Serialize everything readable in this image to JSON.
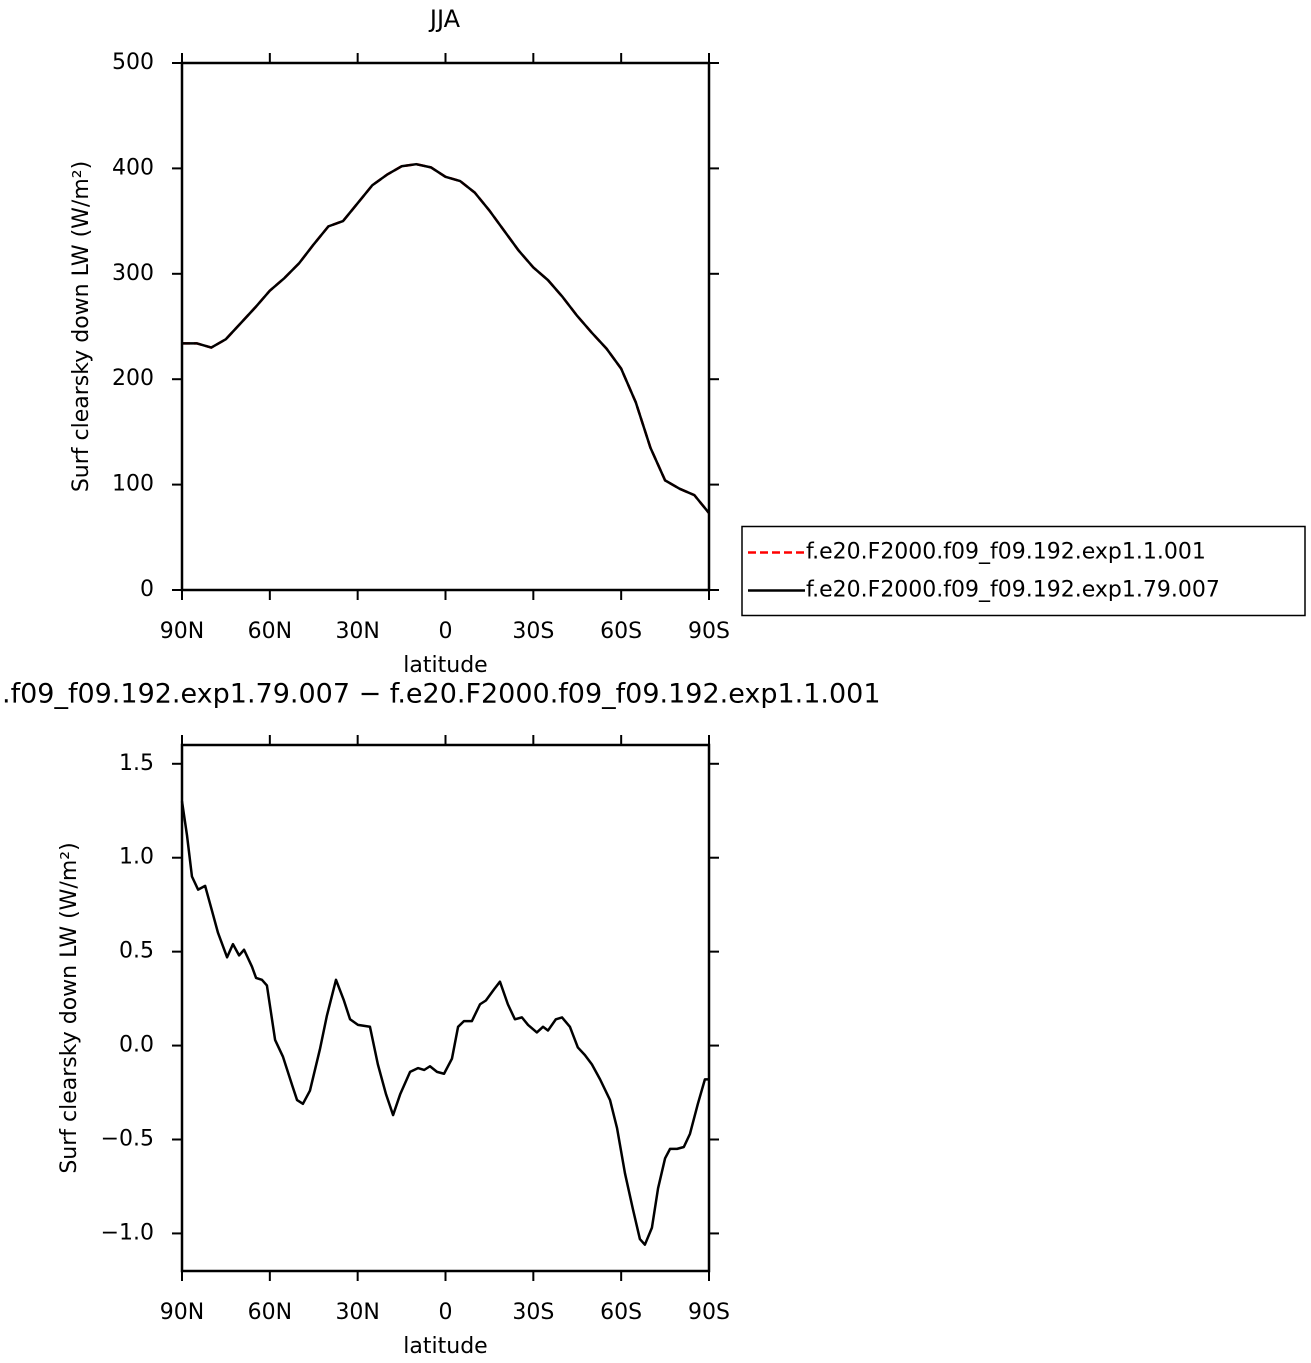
{
  "chart_data": [
    {
      "type": "line",
      "title": "JJA",
      "xlabel": "latitude",
      "ylabel": "Surf clearsky down LW (W/m²)",
      "x": [
        90,
        85,
        80,
        75,
        70,
        65,
        60,
        55,
        50,
        45,
        40,
        35,
        30,
        25,
        20,
        15,
        10,
        5,
        0,
        -5,
        -10,
        -15,
        -20,
        -25,
        -30,
        -35,
        -40,
        -45,
        -50,
        -55,
        -60,
        -65,
        -70,
        -75,
        -80,
        -85,
        -90
      ],
      "series": [
        {
          "name": "f.e20.F2000.f09_f09.192.exp1.1.001",
          "color": "#ff0000",
          "dash": true,
          "values": [
            234,
            234,
            230,
            238,
            253,
            268,
            284,
            296,
            310,
            328,
            345,
            350,
            367,
            384,
            394,
            402,
            404,
            401,
            392,
            388,
            377,
            360,
            341,
            322,
            306,
            294,
            278,
            260,
            244,
            229,
            210,
            178,
            135,
            104,
            96,
            90,
            73
          ]
        },
        {
          "name": "f.e20.F2000.f09_f09.192.exp1.79.007",
          "color": "#000000",
          "dash": false,
          "values": [
            234,
            234,
            230,
            238,
            253,
            268,
            284,
            296,
            310,
            328,
            345,
            350,
            367,
            384,
            394,
            402,
            404,
            401,
            392,
            388,
            377,
            360,
            341,
            322,
            306,
            294,
            278,
            260,
            244,
            229,
            210,
            178,
            135,
            104,
            96,
            90,
            73
          ]
        }
      ],
      "xlim": [
        90,
        -90
      ],
      "xticks": [
        {
          "value": 90,
          "label": "90N"
        },
        {
          "value": 60,
          "label": "60N"
        },
        {
          "value": 30,
          "label": "30N"
        },
        0,
        {
          "value": -30,
          "label": "30S"
        },
        {
          "value": -60,
          "label": "60S"
        },
        {
          "value": -90,
          "label": "90S"
        }
      ],
      "ylim": [
        0,
        500
      ],
      "yticks": [
        0,
        100,
        200,
        300,
        400,
        500
      ],
      "legend": "right"
    },
    {
      "type": "line",
      "title": ".f09_f09.192.exp1.79.007 − f.e20.F2000.f09_f09.192.exp1.1.001",
      "xlabel": "latitude",
      "ylabel": "Surf clearsky down LW (W/m²)",
      "x": [
        90,
        88.3,
        86.6,
        84.5,
        82.1,
        79.8,
        77.7,
        74.6,
        72.6,
        70.5,
        68.8,
        66.1,
        64.7,
        62.7,
        61.0,
        58.2,
        55.5,
        52.4,
        50.7,
        48.7,
        46.3,
        42.9,
        40.5,
        37.4,
        34.7,
        32.6,
        29.9,
        25.8,
        23.1,
        20.3,
        17.9,
        15.5,
        12.1,
        9.4,
        7.3,
        5.3,
        2.9,
        0.5,
        -2.2,
        -4.3,
        -6.3,
        -9.0,
        -11.8,
        -13.8,
        -16.6,
        -18.6,
        -21.3,
        -23.7,
        -26.1,
        -28.2,
        -31.2,
        -33.3,
        -35.0,
        -37.7,
        -39.8,
        -42.5,
        -45.2,
        -47.6,
        -50.0,
        -52.8,
        -56.2,
        -58.6,
        -61.3,
        -64.0,
        -66.4,
        -68.1,
        -70.5,
        -72.6,
        -75.0,
        -76.7,
        -79.1,
        -81.4,
        -83.5,
        -86.2,
        -88.6,
        -90
      ],
      "series": [
        {
          "color": "#000000",
          "dash": false,
          "values": [
            1.3,
            1.12,
            0.9,
            0.83,
            0.85,
            0.72,
            0.6,
            0.47,
            0.54,
            0.48,
            0.51,
            0.42,
            0.36,
            0.35,
            0.32,
            0.03,
            -0.06,
            -0.21,
            -0.29,
            -0.31,
            -0.24,
            -0.02,
            0.16,
            0.35,
            0.24,
            0.14,
            0.11,
            0.1,
            -0.1,
            -0.26,
            -0.37,
            -0.26,
            -0.14,
            -0.12,
            -0.13,
            -0.11,
            -0.14,
            -0.15,
            -0.07,
            0.1,
            0.13,
            0.13,
            0.22,
            0.24,
            0.3,
            0.34,
            0.22,
            0.14,
            0.15,
            0.11,
            0.07,
            0.1,
            0.08,
            0.14,
            0.15,
            0.1,
            -0.01,
            -0.05,
            -0.1,
            -0.18,
            -0.29,
            -0.44,
            -0.68,
            -0.87,
            -1.03,
            -1.06,
            -0.97,
            -0.76,
            -0.6,
            -0.55,
            -0.55,
            -0.54,
            -0.47,
            -0.31,
            -0.18,
            -0.18
          ]
        }
      ],
      "xlim": [
        90,
        -90
      ],
      "xticks": [
        {
          "value": 90,
          "label": "90N"
        },
        {
          "value": 60,
          "label": "60N"
        },
        {
          "value": 30,
          "label": "30N"
        },
        0,
        {
          "value": -30,
          "label": "30S"
        },
        {
          "value": -60,
          "label": "60S"
        },
        {
          "value": -90,
          "label": "90S"
        }
      ],
      "ylim": [
        -1.2,
        1.6
      ],
      "yticks": [
        {
          "value": -1,
          "label": "−1.0"
        },
        {
          "value": -0.5,
          "label": "−0.5"
        },
        {
          "value": 0,
          "label": "0.0"
        },
        0.5,
        {
          "value": 1,
          "label": "1.0"
        },
        1.5
      ]
    }
  ]
}
